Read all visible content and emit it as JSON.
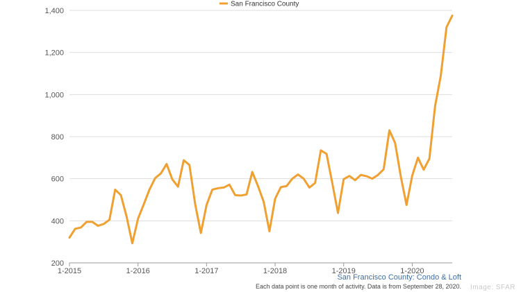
{
  "chart_data": {
    "type": "line",
    "title": "",
    "xlabel": "",
    "ylabel": "",
    "ylim": [
      200,
      1400
    ],
    "y_ticks": [
      200,
      400,
      600,
      800,
      1000,
      1200,
      1400
    ],
    "y_tick_labels": [
      "200",
      "400",
      "600",
      "800",
      "1,000",
      "1,200",
      "1,400"
    ],
    "x_ticks": [
      "2015-01",
      "2016-01",
      "2017-01",
      "2018-01",
      "2019-01",
      "2020-01"
    ],
    "x_tick_labels": [
      "1-2015",
      "1-2016",
      "1-2017",
      "1-2018",
      "1-2019",
      "1-2020"
    ],
    "grid": "horizontal",
    "legend_position": "top-center",
    "series": [
      {
        "name": "San Francisco County",
        "color": "#F0A030",
        "points": [
          [
            "2015-01",
            320
          ],
          [
            "2015-02",
            362
          ],
          [
            "2015-03",
            368
          ],
          [
            "2015-04",
            395
          ],
          [
            "2015-05",
            395
          ],
          [
            "2015-06",
            376
          ],
          [
            "2015-07",
            385
          ],
          [
            "2015-08",
            405
          ],
          [
            "2015-09",
            548
          ],
          [
            "2015-10",
            522
          ],
          [
            "2015-11",
            420
          ],
          [
            "2015-12",
            293
          ],
          [
            "2016-01",
            410
          ],
          [
            "2016-02",
            478
          ],
          [
            "2016-03",
            548
          ],
          [
            "2016-04",
            603
          ],
          [
            "2016-05",
            625
          ],
          [
            "2016-06",
            670
          ],
          [
            "2016-07",
            597
          ],
          [
            "2016-08",
            562
          ],
          [
            "2016-09",
            688
          ],
          [
            "2016-10",
            665
          ],
          [
            "2016-11",
            480
          ],
          [
            "2016-12",
            342
          ],
          [
            "2017-01",
            475
          ],
          [
            "2017-02",
            548
          ],
          [
            "2017-03",
            555
          ],
          [
            "2017-04",
            558
          ],
          [
            "2017-05",
            572
          ],
          [
            "2017-06",
            522
          ],
          [
            "2017-07",
            520
          ],
          [
            "2017-08",
            525
          ],
          [
            "2017-09",
            632
          ],
          [
            "2017-10",
            565
          ],
          [
            "2017-11",
            490
          ],
          [
            "2017-12",
            350
          ],
          [
            "2018-01",
            505
          ],
          [
            "2018-02",
            560
          ],
          [
            "2018-03",
            565
          ],
          [
            "2018-04",
            600
          ],
          [
            "2018-05",
            620
          ],
          [
            "2018-06",
            600
          ],
          [
            "2018-07",
            558
          ],
          [
            "2018-08",
            580
          ],
          [
            "2018-09",
            735
          ],
          [
            "2018-10",
            718
          ],
          [
            "2018-11",
            580
          ],
          [
            "2018-12",
            437
          ],
          [
            "2019-01",
            598
          ],
          [
            "2019-02",
            613
          ],
          [
            "2019-03",
            593
          ],
          [
            "2019-04",
            618
          ],
          [
            "2019-05",
            612
          ],
          [
            "2019-06",
            600
          ],
          [
            "2019-07",
            618
          ],
          [
            "2019-08",
            645
          ],
          [
            "2019-09",
            830
          ],
          [
            "2019-10",
            770
          ],
          [
            "2019-11",
            610
          ],
          [
            "2019-12",
            475
          ],
          [
            "2020-01",
            615
          ],
          [
            "2020-02",
            700
          ],
          [
            "2020-03",
            643
          ],
          [
            "2020-04",
            695
          ],
          [
            "2020-05",
            945
          ],
          [
            "2020-06",
            1090
          ],
          [
            "2020-07",
            1320
          ],
          [
            "2020-08",
            1375
          ]
        ]
      }
    ]
  },
  "caption": {
    "title": "San Francisco County: Condo & Loft",
    "note": "Each data point is one month of activity. Data is from September 28, 2020."
  },
  "watermark": "Image: SFAR"
}
